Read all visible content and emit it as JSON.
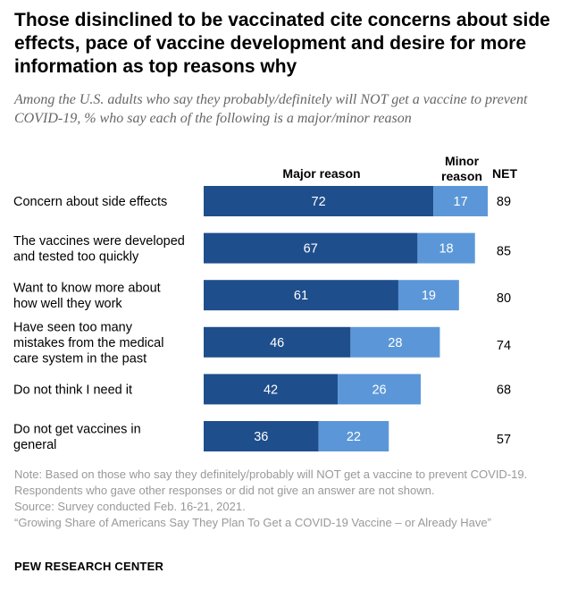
{
  "header": {
    "title": "Those disinclined to be vaccinated cite concerns about side effects, pace of vaccine development and desire for more information as top reasons why",
    "subtitle": "Among the U.S. adults who say they probably/definitely will NOT get a vaccine to prevent COVID-19, % who say each of the following is a major/minor reason"
  },
  "columns": {
    "major": "Major reason",
    "minor": "Minor reason",
    "net": "NET"
  },
  "colors": {
    "major": "#1f4e8c",
    "minor": "#5b97d8",
    "label_on_bar": "#ffffff"
  },
  "chart_data": {
    "type": "bar",
    "orientation": "horizontal",
    "stacked": true,
    "categories": [
      "Concern about side effects",
      "The vaccines were developed and tested too quickly",
      "Want to know more about how well they work",
      "Have seen too many mistakes from the medical care system in the past",
      "Do not think I need it",
      "Do not get vaccines in general"
    ],
    "category_lines": [
      [
        "Concern about side effects"
      ],
      [
        "The vaccines were developed",
        "and tested too quickly"
      ],
      [
        "Want to know more about",
        "how well they work"
      ],
      [
        "Have seen too many",
        "mistakes from the medical",
        "care system in the past"
      ],
      [
        "Do not think I need it"
      ],
      [
        "Do not get vaccines in",
        "general"
      ]
    ],
    "series": [
      {
        "name": "Major reason",
        "values": [
          72,
          67,
          61,
          46,
          42,
          36
        ]
      },
      {
        "name": "Minor reason",
        "values": [
          17,
          18,
          19,
          28,
          26,
          22
        ]
      }
    ],
    "net": [
      89,
      85,
      80,
      74,
      68,
      57
    ],
    "xlim": [
      0,
      89
    ],
    "grid": false,
    "legend": "column headers above bars"
  },
  "footer": {
    "note": "Note: Based on those who say they definitely/probably will NOT get a vaccine to prevent COVID-19. Respondents who gave other responses or did not give an answer are not shown.",
    "source": "Source: Survey conducted Feb. 16-21, 2021.",
    "report": "“Growing Share of Americans Say They Plan To Get a COVID-19 Vaccine – or Already Have”",
    "brand": "PEW RESEARCH CENTER"
  }
}
